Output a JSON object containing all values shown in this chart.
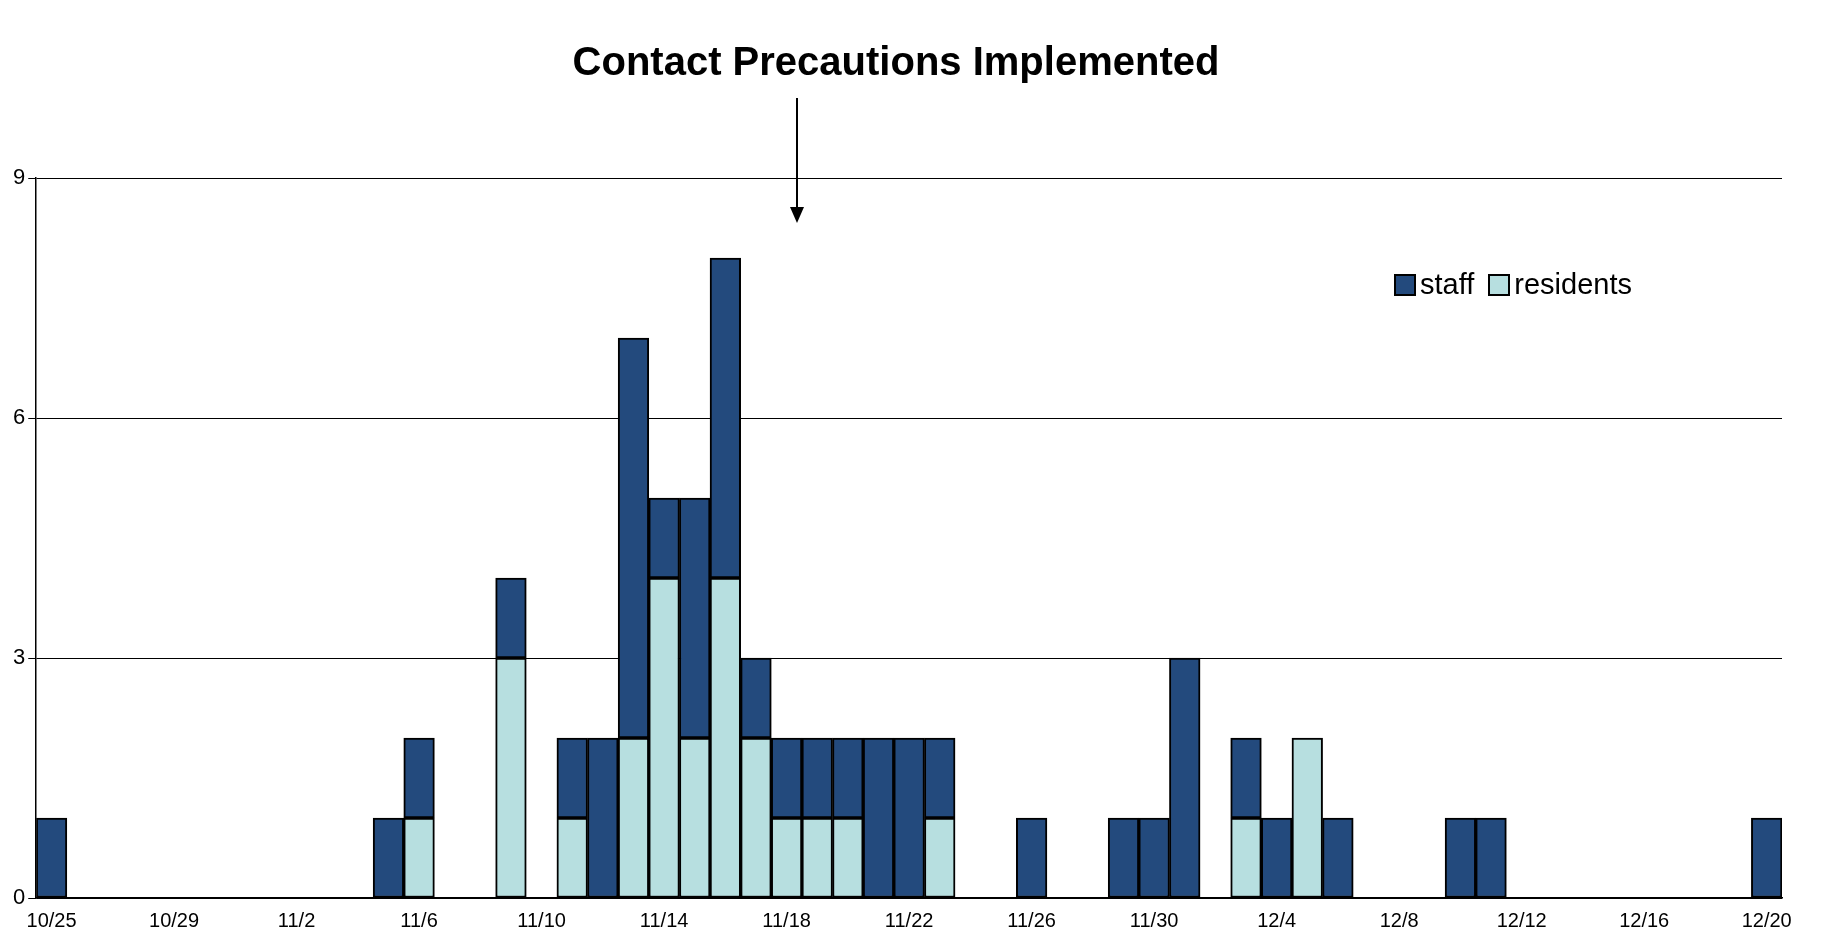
{
  "chart_data": {
    "type": "bar",
    "title": "Contact Precautions Implemented",
    "categories": [
      "10/25",
      null,
      null,
      null,
      "10/29",
      null,
      null,
      null,
      "11/2",
      null,
      null,
      null,
      "11/6",
      null,
      null,
      null,
      "11/10",
      null,
      null,
      null,
      "11/14",
      null,
      null,
      null,
      "11/18",
      null,
      null,
      null,
      "11/22",
      null,
      null,
      null,
      "11/26",
      null,
      null,
      null,
      "11/30",
      null,
      null,
      null,
      "12/4",
      null,
      null,
      null,
      "12/8",
      null,
      null,
      null,
      "12/12",
      null,
      null,
      null,
      "12/16",
      null,
      null,
      null,
      "12/20"
    ],
    "stacked": true,
    "series": [
      {
        "name": "residents",
        "color": "#b7dfe0",
        "values": [
          0,
          0,
          0,
          0,
          0,
          0,
          0,
          0,
          0,
          0,
          0,
          0,
          1,
          0,
          0,
          3,
          0,
          1,
          0,
          2,
          4,
          2,
          4,
          2,
          1,
          1,
          1,
          0,
          0,
          1,
          0,
          0,
          0,
          0,
          0,
          0,
          0,
          0,
          0,
          1,
          0,
          2,
          0,
          0,
          0,
          0,
          0,
          0,
          0,
          0,
          0,
          0,
          0,
          0,
          0,
          0,
          0
        ]
      },
      {
        "name": "staff",
        "color": "#234a7d",
        "values": [
          1,
          0,
          0,
          0,
          0,
          0,
          0,
          0,
          0,
          0,
          0,
          1,
          1,
          0,
          0,
          1,
          0,
          1,
          2,
          5,
          1,
          3,
          4,
          1,
          1,
          1,
          1,
          2,
          2,
          1,
          0,
          0,
          1,
          0,
          0,
          1,
          1,
          3,
          0,
          1,
          1,
          0,
          1,
          0,
          0,
          0,
          1,
          1,
          0,
          0,
          0,
          0,
          0,
          0,
          0,
          0,
          1
        ]
      }
    ],
    "ylim": [
      0,
      9
    ],
    "yticks": [
      0,
      3,
      6,
      9
    ],
    "grid": "y",
    "legend": "top right"
  }
}
